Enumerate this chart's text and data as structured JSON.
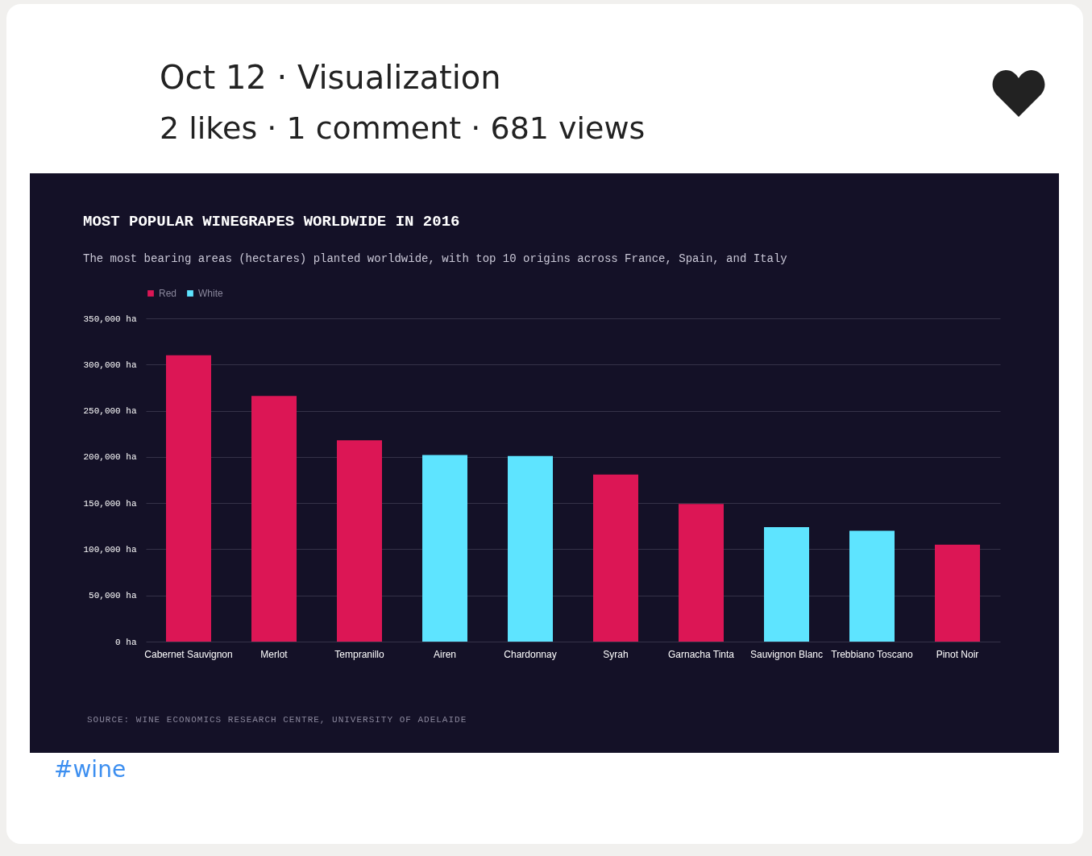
{
  "chart_data": {
    "type": "bar",
    "title": "MOST POPULAR WINEGRAPES WORLDWIDE IN 2016",
    "subtitle": "The most bearing areas (hectares) planted worldwide, with top 10 origins across France, Spain, and Italy",
    "categories": [
      "Cabernet Sauvignon",
      "Merlot",
      "Tempranillo",
      "Airen",
      "Chardonnay",
      "Syrah",
      "Garnacha Tinta",
      "Sauvignon Blanc",
      "Trebbiano Toscano",
      "Pinot Noir"
    ],
    "series": [
      {
        "name": "Red",
        "color": "#dc1655",
        "values": [
          310000,
          266000,
          218000,
          null,
          null,
          181000,
          149000,
          null,
          null,
          105000
        ]
      },
      {
        "name": "White",
        "color": "#5ee4ff",
        "values": [
          null,
          null,
          null,
          202000,
          201000,
          null,
          null,
          124000,
          120000,
          null
        ]
      }
    ],
    "ylim": [
      0,
      350000
    ],
    "yticks": [
      {
        "value": 0,
        "label": "0 ha"
      },
      {
        "value": 50000,
        "label": "50,000 ha"
      },
      {
        "value": 100000,
        "label": "100,000 ha"
      },
      {
        "value": 150000,
        "label": "150,000 ha"
      },
      {
        "value": 200000,
        "label": "200,000 ha"
      },
      {
        "value": 250000,
        "label": "250,000 ha"
      },
      {
        "value": 300000,
        "label": "300,000 ha"
      },
      {
        "value": 350000,
        "label": "350,000 ha"
      }
    ],
    "grid": "y",
    "legend": "top left",
    "annotations": [
      "Oct 12 · Visualization",
      "2 likes · 1 comment · 681 views",
      "SOURCE: WINE ECONOMICS RESEARCH CENTRE, UNIVERSITY OF ADELAIDE",
      "#wine"
    ]
  }
}
